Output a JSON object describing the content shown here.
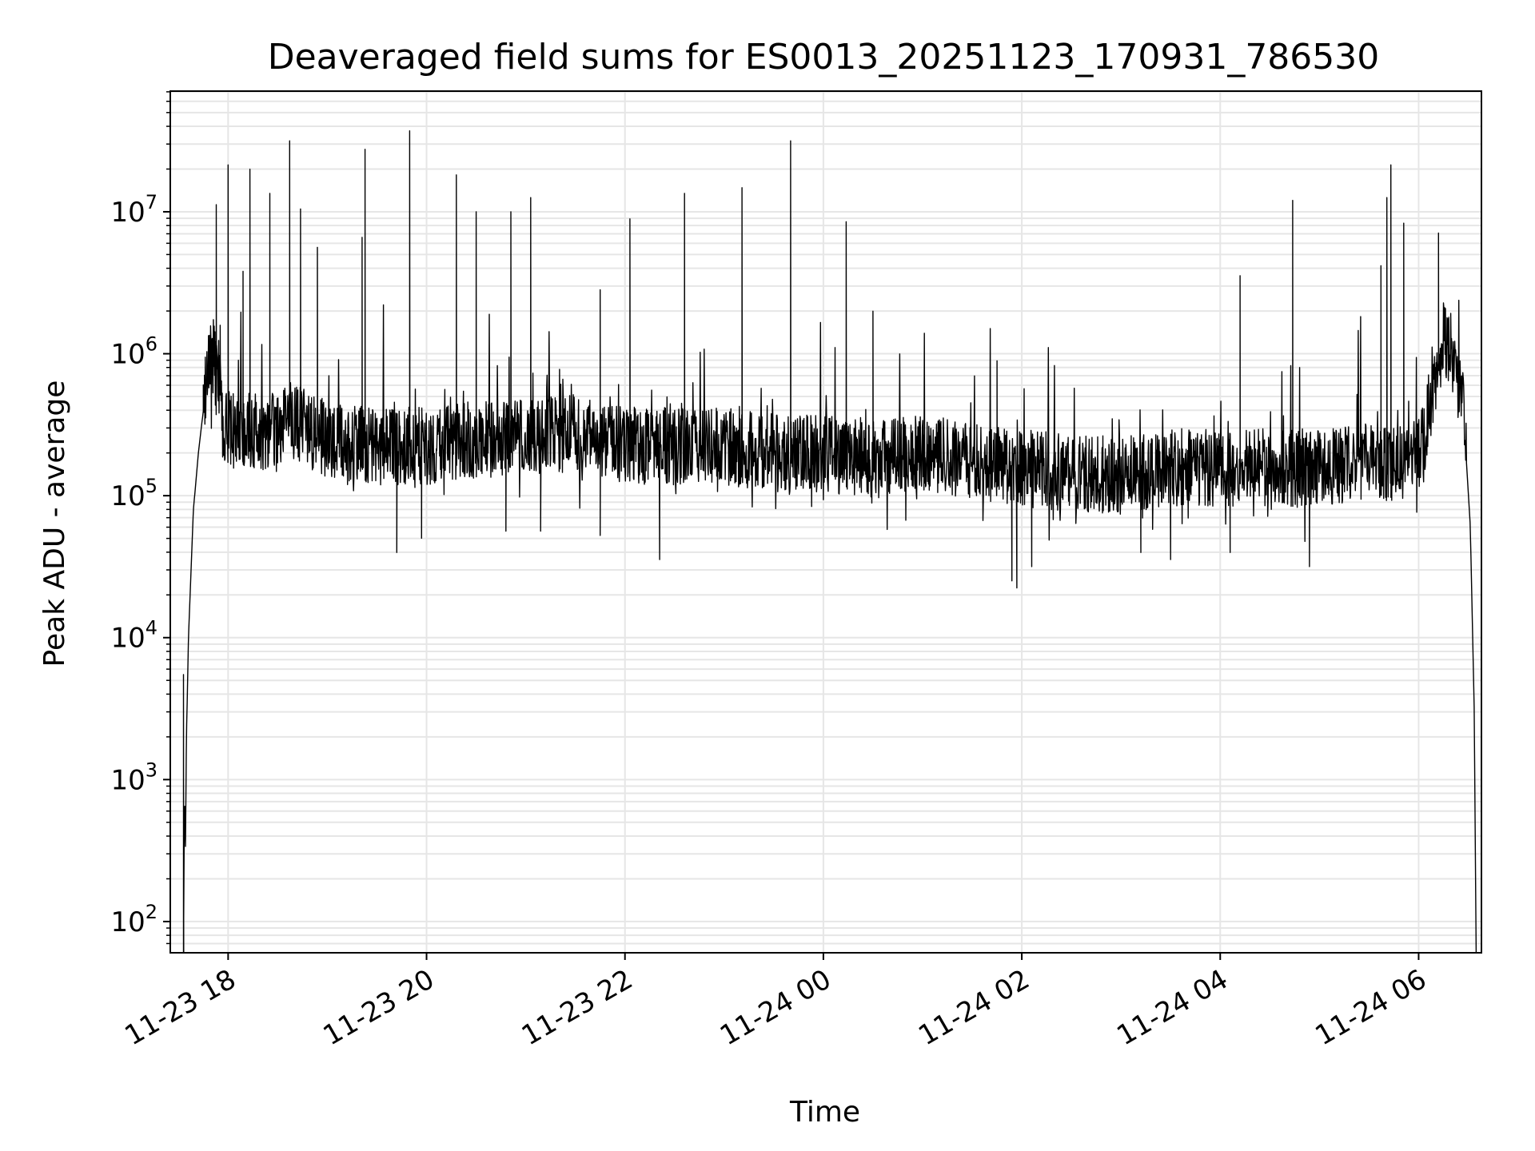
{
  "chart_data": {
    "type": "line",
    "title": "Deaveraged field sums for ES0013_20251123_170931_786530",
    "xlabel": "Time",
    "ylabel": "Peak ADU - average",
    "yscale": "log",
    "grid": true,
    "line_color": "#000000",
    "grid_color": "#e6e6e6",
    "xlim_hours": [
      -0.583,
      12.633
    ],
    "ylim_log10": [
      1.78,
      7.85
    ],
    "x_ticks": [
      {
        "hours": 0,
        "label": "11-23 18"
      },
      {
        "hours": 2,
        "label": "11-23 20"
      },
      {
        "hours": 4,
        "label": "11-23 22"
      },
      {
        "hours": 6,
        "label": "11-24 00"
      },
      {
        "hours": 8,
        "label": "11-24 02"
      },
      {
        "hours": 10,
        "label": "11-24 04"
      },
      {
        "hours": 12,
        "label": "11-24 06"
      }
    ],
    "y_ticks": [
      {
        "exp": 2,
        "base": "10",
        "sup": "2"
      },
      {
        "exp": 3,
        "base": "10",
        "sup": "3"
      },
      {
        "exp": 4,
        "base": "10",
        "sup": "4"
      },
      {
        "exp": 5,
        "base": "10",
        "sup": "5"
      },
      {
        "exp": 6,
        "base": "10",
        "sup": "6"
      },
      {
        "exp": 7,
        "base": "10",
        "sup": "7"
      }
    ],
    "series_note": "x in hours relative to 11-23 18:00, y = log10(Peak ADU - average)",
    "baseline": {
      "x": [
        -0.45,
        -0.44,
        -0.43,
        -0.42,
        -0.4,
        -0.35,
        -0.3,
        -0.25,
        -0.2,
        -0.15,
        -0.1,
        -0.05,
        0.0,
        0.3,
        0.7,
        1.0,
        1.5,
        2.0,
        2.5,
        3.0,
        3.5,
        4.0,
        4.5,
        5.0,
        5.5,
        6.0,
        6.5,
        7.0,
        7.5,
        8.0,
        8.5,
        9.0,
        9.5,
        10.0,
        10.5,
        11.0,
        11.5,
        11.85,
        12.05,
        12.15,
        12.25,
        12.35,
        12.45,
        12.52,
        12.56,
        12.58
      ],
      "y": [
        1.78,
        2.9,
        2.5,
        3.3,
        4.0,
        4.9,
        5.3,
        5.6,
        5.9,
        5.95,
        5.85,
        5.5,
        5.5,
        5.45,
        5.5,
        5.4,
        5.35,
        5.35,
        5.4,
        5.4,
        5.45,
        5.35,
        5.35,
        5.35,
        5.3,
        5.3,
        5.25,
        5.3,
        5.25,
        5.2,
        5.15,
        5.15,
        5.2,
        5.2,
        5.2,
        5.2,
        5.25,
        5.25,
        5.35,
        5.8,
        6.1,
        6.0,
        5.6,
        4.8,
        3.5,
        1.78
      ]
    },
    "spikes": [
      {
        "x": -0.45,
        "y": 3.74
      },
      {
        "x": -0.25,
        "y": 5.78
      },
      {
        "x": -0.08,
        "y": 6.2
      },
      {
        "x": 0.15,
        "y": 6.58
      },
      {
        "x": -0.12,
        "y": 7.05
      },
      {
        "x": 0.0,
        "y": 7.33
      },
      {
        "x": 0.22,
        "y": 7.3
      },
      {
        "x": 0.42,
        "y": 7.13
      },
      {
        "x": 0.62,
        "y": 7.5
      },
      {
        "x": 0.73,
        "y": 7.02
      },
      {
        "x": 0.9,
        "y": 6.75
      },
      {
        "x": 1.35,
        "y": 6.82
      },
      {
        "x": 1.38,
        "y": 7.44
      },
      {
        "x": 1.83,
        "y": 7.57
      },
      {
        "x": 2.3,
        "y": 7.26
      },
      {
        "x": 2.5,
        "y": 7.0
      },
      {
        "x": 2.85,
        "y": 7.0
      },
      {
        "x": 3.05,
        "y": 7.1
      },
      {
        "x": 3.75,
        "y": 6.45
      },
      {
        "x": 4.05,
        "y": 6.95
      },
      {
        "x": 4.6,
        "y": 7.13
      },
      {
        "x": 5.18,
        "y": 7.17
      },
      {
        "x": 5.67,
        "y": 7.5
      },
      {
        "x": 6.23,
        "y": 6.93
      },
      {
        "x": 6.5,
        "y": 6.3
      },
      {
        "x": 7.75,
        "y": 5.95
      },
      {
        "x": 10.2,
        "y": 6.55
      },
      {
        "x": 10.73,
        "y": 7.08
      },
      {
        "x": 11.62,
        "y": 6.62
      },
      {
        "x": 11.68,
        "y": 7.1
      },
      {
        "x": 11.72,
        "y": 7.33
      },
      {
        "x": 11.85,
        "y": 6.92
      },
      {
        "x": 12.2,
        "y": 6.85
      }
    ],
    "dips": [
      {
        "x": 1.7,
        "y": 4.6
      },
      {
        "x": 1.95,
        "y": 4.7
      },
      {
        "x": 2.8,
        "y": 4.75
      },
      {
        "x": 3.15,
        "y": 4.75
      },
      {
        "x": 3.75,
        "y": 4.72
      },
      {
        "x": 4.35,
        "y": 4.55
      },
      {
        "x": 7.9,
        "y": 4.4
      },
      {
        "x": 7.95,
        "y": 4.35
      },
      {
        "x": 8.1,
        "y": 4.5
      },
      {
        "x": 9.2,
        "y": 4.6
      },
      {
        "x": 9.5,
        "y": 4.55
      },
      {
        "x": 10.1,
        "y": 4.6
      },
      {
        "x": 10.9,
        "y": 4.5
      }
    ]
  }
}
